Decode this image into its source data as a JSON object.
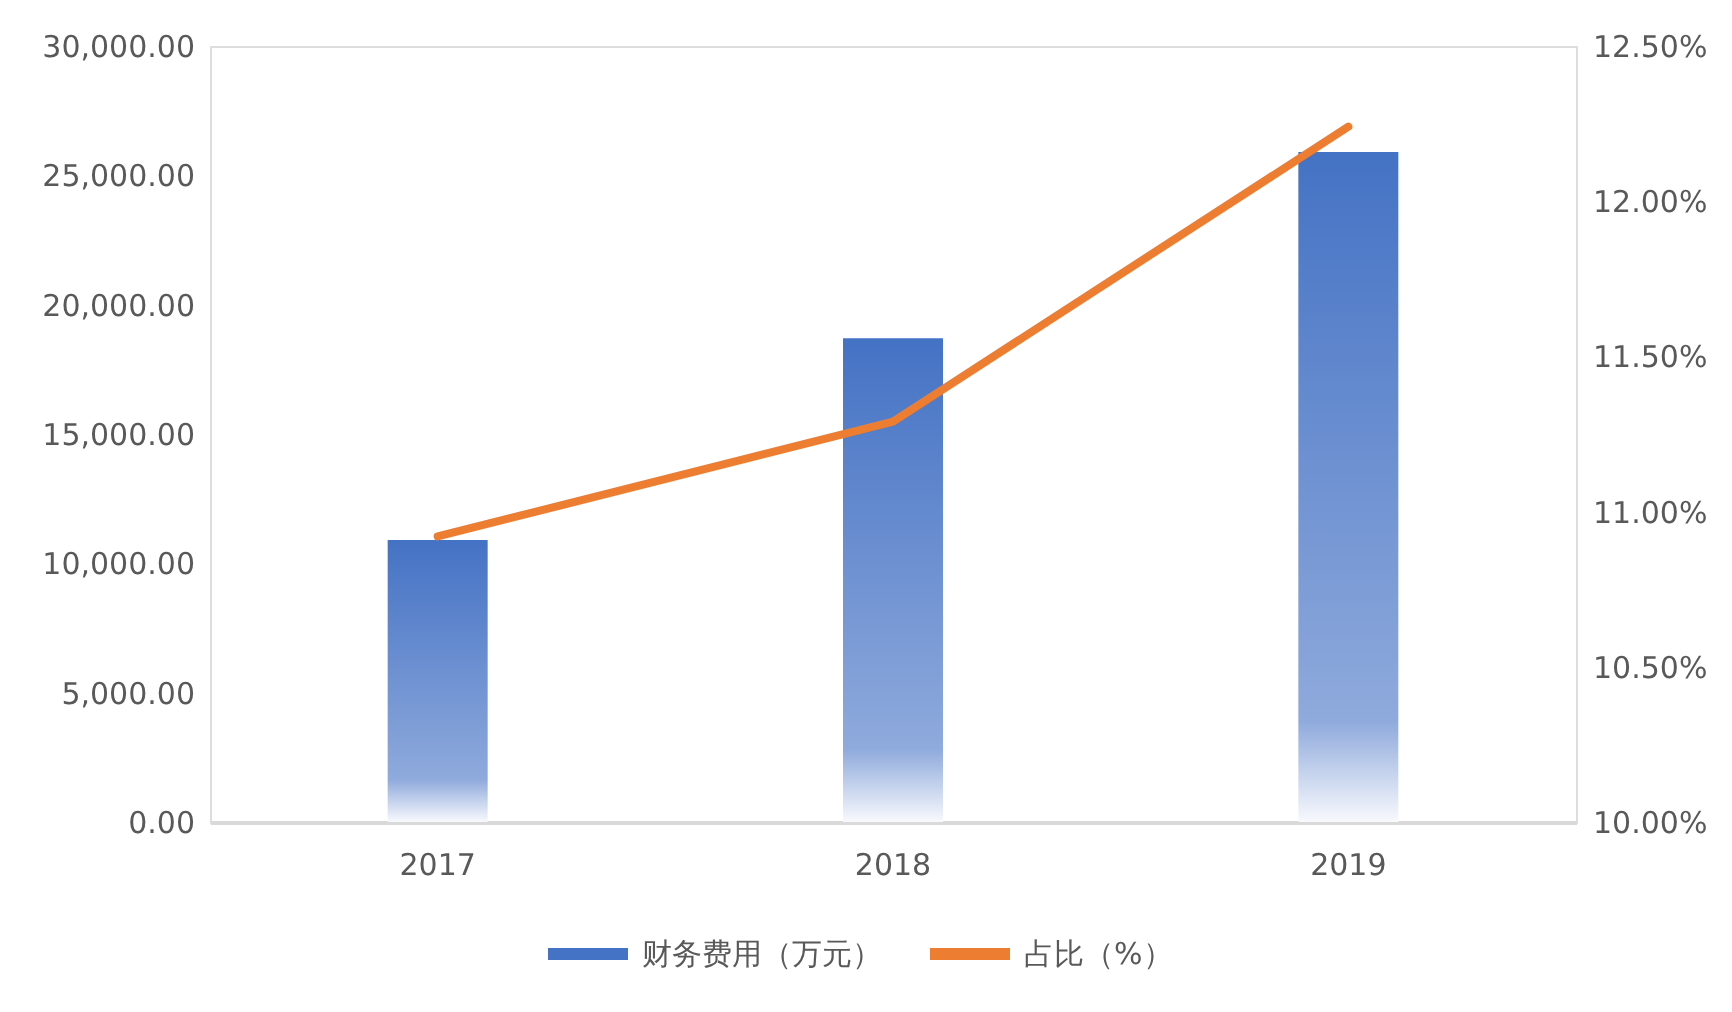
{
  "chart_data": {
    "type": "bar",
    "categories": [
      "2017",
      "2018",
      "2019"
    ],
    "series": [
      {
        "name": "财务费用（万元）",
        "color": "#4472c4",
        "values": [
          10900,
          18700,
          25900
        ]
      },
      {
        "name": "占比（%）",
        "type": "line",
        "axis": "y2",
        "color": "#ed7d31",
        "values": [
          10.92,
          11.29,
          12.24
        ]
      }
    ],
    "ylim": [
      0,
      30000
    ],
    "yticks": [
      {
        "value": 0,
        "label": "0.00"
      },
      {
        "value": 5000,
        "label": "5,000.00"
      },
      {
        "value": 10000,
        "label": "10,000.00"
      },
      {
        "value": 15000,
        "label": "15,000.00"
      },
      {
        "value": 20000,
        "label": "20,000.00"
      },
      {
        "value": 25000,
        "label": "25,000.00"
      },
      {
        "value": 30000,
        "label": "30,000.00"
      }
    ],
    "y2lim": [
      10,
      12.5
    ],
    "y2ticks": [
      {
        "value": 10,
        "label": "10.00%"
      },
      {
        "value": 10.5,
        "label": "10.50%"
      },
      {
        "value": 11,
        "label": "11.00%"
      },
      {
        "value": 11.5,
        "label": "11.50%"
      },
      {
        "value": 12,
        "label": "12.00%"
      },
      {
        "value": 12.5,
        "label": "12.50%"
      }
    ],
    "legend": "bottom",
    "grid": false
  }
}
